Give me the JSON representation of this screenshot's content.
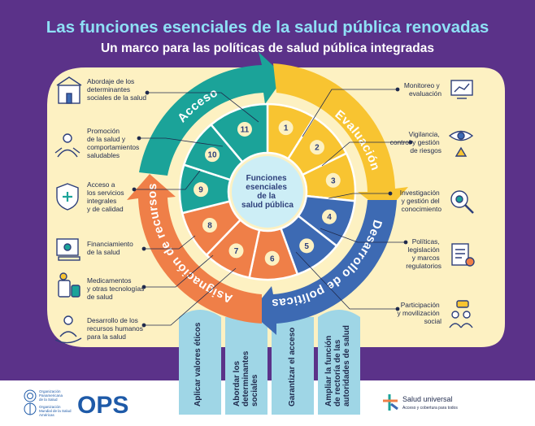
{
  "title": "Las funciones esenciales de la salud pública renovadas",
  "subtitle": "Un marco para las políticas de salud pública integradas",
  "center": [
    "Funciones",
    "esenciales",
    "de la",
    "salud pública"
  ],
  "arcs": {
    "acceso": "Acceso",
    "evaluacion": "Evaluación",
    "desarrollo": "Desarrollo de políticas",
    "asignacion": "Asignación de recursos"
  },
  "segments": [
    "1",
    "2",
    "3",
    "4",
    "5",
    "6",
    "7",
    "8",
    "9",
    "10",
    "11"
  ],
  "left_labels": [
    [
      "Abordaje de los",
      "determinantes",
      "sociales de la salud"
    ],
    [
      "Promoción",
      "de la salud y",
      "comportamientos",
      "saludables"
    ],
    [
      "Acceso a",
      "los servicios",
      "integrales",
      "y de calidad"
    ],
    [
      "Financiamiento",
      "de la salud"
    ],
    [
      "Medicamentos",
      "y otras tecnologías",
      "de salud"
    ],
    [
      "Desarrollo de los",
      "recursos humanos",
      "para la salud"
    ]
  ],
  "right_labels": [
    [
      "Monitoreo y",
      "evaluación"
    ],
    [
      "Vigilancia,",
      "control y gestión",
      "de riesgos"
    ],
    [
      "Investigación",
      "y gestión del",
      "conocimiento"
    ],
    [
      "Políticas,",
      "legislación",
      "y marcos",
      "regulatorios"
    ],
    [
      "Participación",
      "y movilización",
      "social"
    ]
  ],
  "pillars": [
    [
      "Aplicar valores éticos"
    ],
    [
      "Abordar los",
      "determinantes",
      "sociales"
    ],
    [
      "Garantizar el acceso"
    ],
    [
      "Ampliar la función",
      "de rectoría de las",
      "autoridades de salud"
    ]
  ],
  "footer": {
    "ops": "OPS",
    "org1": [
      "Organización",
      "Panamericana",
      "de la Salud"
    ],
    "org2": [
      "Organización",
      "Mundial de la Salud"
    ],
    "americas": "Américas",
    "brand": "Salud universal",
    "brand_tagline": "Acceso y cobertura para todos"
  },
  "icons": [
    "building-icon",
    "meditation-icon",
    "shield-medical-icon",
    "money-icon",
    "medicine-icon",
    "hand-person-icon",
    "monitor-chart-icon",
    "eye-alert-icon",
    "magnifier-gears-icon",
    "document-law-icon",
    "people-chat-icon"
  ],
  "colors": {
    "frame": "#5b3289",
    "cream": "#fdf1c2",
    "teal": "#1ba399",
    "yellow": "#f8c431",
    "blue": "#3d6ab3",
    "orange": "#ef7f48",
    "light_blue": "#9fd6e6",
    "title": "#8ee0f5"
  }
}
